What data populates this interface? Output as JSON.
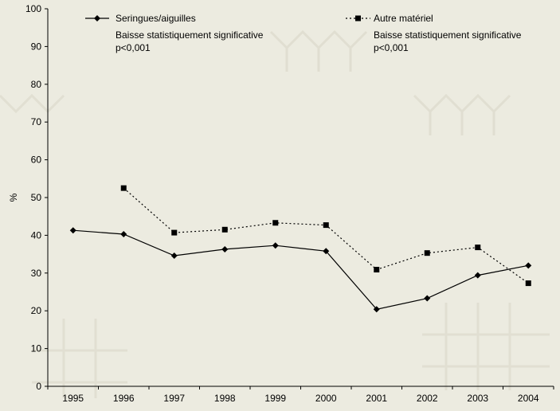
{
  "chart_data": {
    "type": "line",
    "title": "",
    "xlabel": "",
    "ylabel": "%",
    "categories": [
      "1995",
      "1996",
      "1997",
      "1998",
      "1999",
      "2000",
      "2001",
      "2002",
      "2003",
      "2004"
    ],
    "ylim": [
      0,
      100
    ],
    "yticks": [
      "0",
      "10",
      "20",
      "30",
      "40",
      "50",
      "60",
      "70",
      "80",
      "90",
      "100"
    ],
    "grid": false,
    "legend_position": "top",
    "series": [
      {
        "name": "Seringues/aiguilles",
        "note_line1": "Baisse statistiquement significative",
        "note_line2": "p<0,001",
        "marker": "diamond",
        "line_style": "solid",
        "color": "#000000",
        "values": [
          41.3,
          40.3,
          34.6,
          36.3,
          37.3,
          35.8,
          20.4,
          23.3,
          29.4,
          32.0
        ]
      },
      {
        "name": "Autre matériel",
        "note_line1": "Baisse statistiquement significative",
        "note_line2": "p<0,001",
        "marker": "square",
        "line_style": "dotted",
        "color": "#000000",
        "values": [
          null,
          52.5,
          40.7,
          41.5,
          43.3,
          42.7,
          30.9,
          35.3,
          36.8,
          27.3
        ]
      }
    ]
  },
  "colors": {
    "background": "#ecebe0",
    "axis": "#000000"
  }
}
